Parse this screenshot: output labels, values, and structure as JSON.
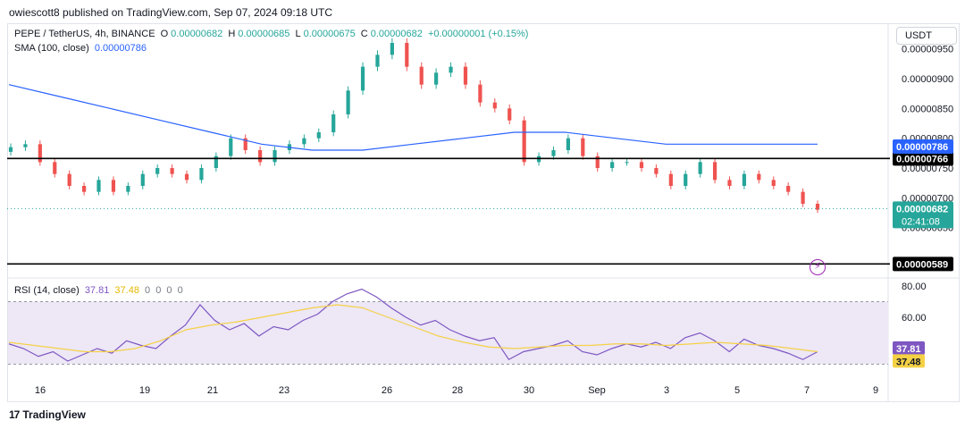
{
  "header": {
    "publish_line": "owiescott8 published on TradingView.com, Sep 07, 2024 09:18 UTC"
  },
  "legend": {
    "symbol": "PEPE / TetherUS, 4h, BINANCE",
    "o_label": "O",
    "o": "0.00000682",
    "h_label": "H",
    "h": "0.00000685",
    "l_label": "L",
    "l": "0.00000675",
    "c_label": "C",
    "c": "0.00000682",
    "change": "+0.00000001 (+0.15%)",
    "sma_label": "SMA (100, close)",
    "sma_value": "0.00000786",
    "rsi_label": "RSI (14, close)",
    "rsi_value": "37.81",
    "rsi_ma": "37.48",
    "rsi_zeros": [
      "0",
      "0",
      "0",
      "0"
    ]
  },
  "currency_button": "USDT",
  "footer": {
    "brand": "TradingView",
    "logo_mark": "17"
  },
  "colors": {
    "up": "#26a69a",
    "down": "#ef5350",
    "sma": "#2962ff",
    "rsi": "#7e57c2",
    "rsi_ma": "#f5d146",
    "rsi_band": "#ede7f6",
    "level": "#000000"
  },
  "chart_data": [
    {
      "type": "candlestick",
      "y_axis_ticks": [
        {
          "value": 9.5e-06,
          "label": "0.00000950"
        },
        {
          "value": 9e-06,
          "label": "0.00000900"
        },
        {
          "value": 8.5e-06,
          "label": "0.00000850"
        },
        {
          "value": 8e-06,
          "label": "0.00000800"
        },
        {
          "value": 7.5e-06,
          "label": "0.00000750"
        },
        {
          "value": 7e-06,
          "label": "0.00000700"
        },
        {
          "value": 6.5e-06,
          "label": "0.00000650"
        }
      ],
      "ylim": [
        5.7e-06,
        9.9e-06
      ],
      "x_ticks": [
        "16",
        "19",
        "21",
        "23",
        "26",
        "28",
        "30",
        "Sep",
        "3",
        "5",
        "7",
        "9"
      ],
      "horizontal_levels": [
        {
          "value": 7.66e-06,
          "label": "0.00000766"
        },
        {
          "value": 5.89e-06,
          "label": "0.00000589"
        }
      ],
      "sma_badge": {
        "value": 7.86e-06,
        "label": "0.00000786"
      },
      "price_badge": {
        "value": 6.82e-06,
        "label": "0.00000682",
        "countdown": "02:41:08"
      },
      "close_path": [
        7.85e-06,
        7.9e-06,
        7.6e-06,
        7.4e-06,
        7.2e-06,
        7.1e-06,
        7.3e-06,
        7.1e-06,
        7.2e-06,
        7.4e-06,
        7.5e-06,
        7.4e-06,
        7.3e-06,
        7.5e-06,
        7.7e-06,
        8e-06,
        7.8e-06,
        7.6e-06,
        7.8e-06,
        7.9e-06,
        8e-06,
        8.1e-06,
        8.4e-06,
        8.8e-06,
        9.2e-06,
        9.4e-06,
        9.6e-06,
        9.2e-06,
        8.9e-06,
        9.1e-06,
        9.2e-06,
        8.9e-06,
        8.6e-06,
        8.5e-06,
        8.3e-06,
        7.6e-06,
        7.7e-06,
        7.8e-06,
        8e-06,
        7.7e-06,
        7.5e-06,
        7.6e-06,
        7.6e-06,
        7.5e-06,
        7.4e-06,
        7.2e-06,
        7.4e-06,
        7.6e-06,
        7.3e-06,
        7.2e-06,
        7.4e-06,
        7.3e-06,
        7.2e-06,
        7.1e-06,
        6.9e-06,
        6.8e-06
      ],
      "sma_path": [
        8.9e-06,
        8.7e-06,
        8.5e-06,
        8.3e-06,
        8.1e-06,
        7.9e-06,
        7.8e-06,
        7.8e-06,
        7.9e-06,
        8e-06,
        8.1e-06,
        8.1e-06,
        8e-06,
        7.9e-06,
        7.9e-06,
        7.9e-06,
        7.9e-06
      ]
    },
    {
      "type": "line",
      "name": "RSI (14, close)",
      "y_axis_ticks": [
        {
          "value": 80,
          "label": "80.00"
        },
        {
          "value": 60,
          "label": "60.00"
        }
      ],
      "ylim": [
        20,
        84
      ],
      "band": [
        30,
        70
      ],
      "rsi_badge": {
        "value": 37.81,
        "label": "37.81"
      },
      "rsi_ma_badge": {
        "value": 37.48,
        "label": "37.48"
      },
      "rsi_path": [
        43,
        40,
        35,
        38,
        32,
        36,
        40,
        37,
        45,
        42,
        40,
        48,
        55,
        68,
        58,
        52,
        56,
        48,
        54,
        52,
        58,
        62,
        70,
        75,
        78,
        73,
        66,
        60,
        55,
        58,
        52,
        48,
        45,
        47,
        33,
        38,
        40,
        42,
        45,
        38,
        36,
        40,
        43,
        41,
        44,
        40,
        47,
        50,
        45,
        38,
        46,
        42,
        40,
        37,
        33,
        38
      ],
      "rsi_ma_path": [
        44,
        42,
        40,
        38,
        38,
        40,
        45,
        52,
        55,
        57,
        60,
        63,
        66,
        68,
        66,
        60,
        54,
        48,
        44,
        41,
        40,
        41,
        42,
        42,
        43,
        43,
        42,
        43,
        44,
        43,
        42,
        40,
        38
      ]
    }
  ]
}
